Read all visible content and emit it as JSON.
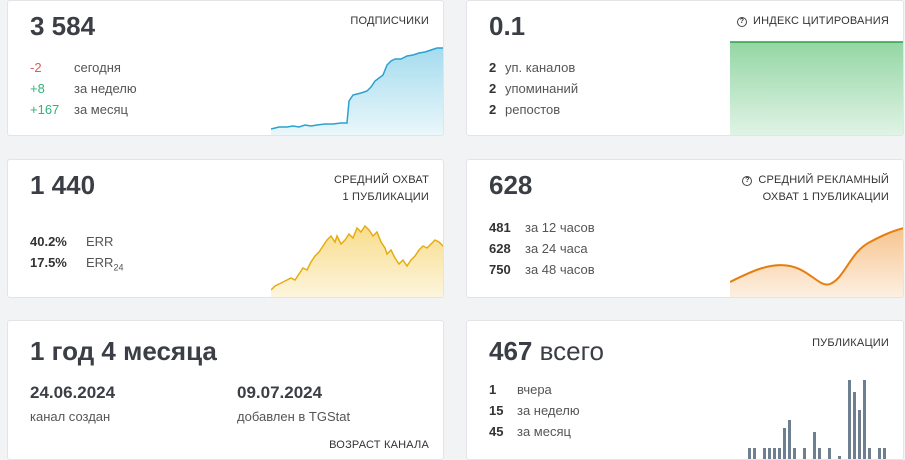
{
  "subscribers": {
    "value": "3 584",
    "label": "ПОДПИСЧИКИ",
    "rows": [
      {
        "value": "-2",
        "text": "сегодня"
      },
      {
        "value": "+8",
        "text": "за неделю"
      },
      {
        "value": "+167",
        "text": "за месяц"
      }
    ],
    "color": "#5bbfe0"
  },
  "citation": {
    "value": "0.1",
    "label": "ИНДЕКС ЦИТИРОВАНИЯ",
    "rows": [
      {
        "value": "2",
        "text": "уп. каналов"
      },
      {
        "value": "2",
        "text": "упоминаний"
      },
      {
        "value": "2",
        "text": "репостов"
      }
    ],
    "color": "#3cb55a"
  },
  "avg_reach": {
    "value": "1 440",
    "label_line1": "СРЕДНИЙ ОХВАТ",
    "label_line2": "1 ПУБЛИКАЦИИ",
    "err_value": "40.2%",
    "err_label": "ERR",
    "err24_value": "17.5%",
    "err24_label": "ERR",
    "err24_sub": "24",
    "color": "#f2c12e"
  },
  "ad_reach": {
    "value": "628",
    "label_line1": "СРЕДНИЙ РЕКЛАМНЫЙ",
    "label_line2": "ОХВАТ 1 ПУБЛИКАЦИИ",
    "rows": [
      {
        "value": "481",
        "text": "за 12 часов"
      },
      {
        "value": "628",
        "text": "за 24 часа"
      },
      {
        "value": "750",
        "text": "за 48 часов"
      }
    ],
    "color": "#ee8a1e"
  },
  "age": {
    "value": "1 год 4 месяца",
    "created_date": "24.06.2024",
    "created_label": "канал создан",
    "added_date": "09.07.2024",
    "added_label": "добавлен в TGStat",
    "label": "ВОЗРАСТ КАНАЛА"
  },
  "publications": {
    "value": "467",
    "suffix": "всего",
    "label": "ПУБЛИКАЦИИ",
    "rows": [
      {
        "value": "1",
        "text": "вчера"
      },
      {
        "value": "15",
        "text": "за неделю"
      },
      {
        "value": "45",
        "text": "за месяц"
      }
    ],
    "color": "#6e7f91"
  },
  "icons": {
    "help": "question-circle-icon"
  }
}
